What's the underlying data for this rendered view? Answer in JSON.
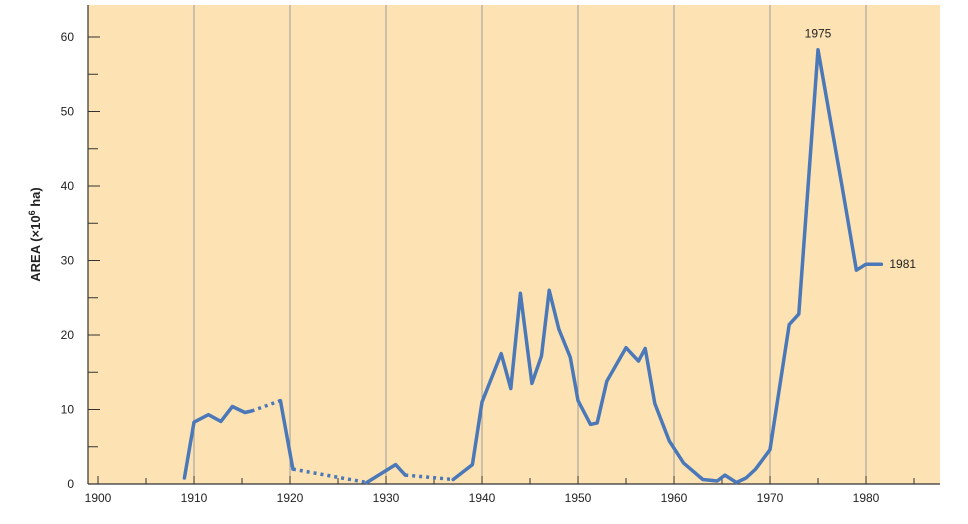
{
  "colors": {
    "plot_background": "#fde3b4",
    "line": "#4a78b8",
    "gridline": "#9a9a9a",
    "axis": "#333333"
  },
  "chart_data": {
    "type": "line",
    "title": "",
    "xlabel": "",
    "ylabel": "AREA (×10",
    "ylabel_sup": "6",
    "ylabel_unit": " ha)",
    "xlim": [
      1900,
      1990
    ],
    "ylim": [
      0,
      64
    ],
    "x_ticks": [
      1900,
      1910,
      1920,
      1930,
      1940,
      1950,
      1960,
      1970,
      1980
    ],
    "y_ticks": [
      0,
      10,
      20,
      30,
      40,
      50,
      60
    ],
    "grid": "vertical",
    "segments": [
      {
        "style": "solid",
        "points": [
          [
            1909,
            0.8
          ],
          [
            1910,
            8.3
          ],
          [
            1911.5,
            9.3
          ],
          [
            1912.8,
            8.4
          ],
          [
            1914,
            10.4
          ],
          [
            1915.3,
            9.6
          ],
          [
            1916,
            9.8
          ]
        ]
      },
      {
        "style": "dotted",
        "points": [
          [
            1916,
            9.8
          ],
          [
            1919,
            11.2
          ]
        ]
      },
      {
        "style": "solid",
        "points": [
          [
            1919,
            11.2
          ],
          [
            1920.3,
            2
          ]
        ]
      },
      {
        "style": "dotted",
        "points": [
          [
            1920.3,
            2
          ],
          [
            1928,
            0.2
          ]
        ]
      },
      {
        "style": "solid",
        "points": [
          [
            1928,
            0.2
          ],
          [
            1931,
            2.6
          ],
          [
            1932,
            1.2
          ]
        ]
      },
      {
        "style": "dotted",
        "points": [
          [
            1932,
            1.2
          ],
          [
            1937,
            0.6
          ]
        ]
      },
      {
        "style": "solid",
        "points": [
          [
            1937,
            0.6
          ],
          [
            1939,
            2.6
          ],
          [
            1940,
            11
          ],
          [
            1942,
            17.5
          ],
          [
            1943,
            12.8
          ],
          [
            1944,
            25.6
          ],
          [
            1945.2,
            13.5
          ],
          [
            1946.2,
            17.2
          ],
          [
            1947,
            26
          ],
          [
            1948,
            20.8
          ],
          [
            1949.2,
            17
          ],
          [
            1950,
            11.2
          ],
          [
            1951.3,
            8
          ],
          [
            1952,
            8.2
          ],
          [
            1953,
            13.8
          ],
          [
            1955,
            18.3
          ],
          [
            1956.3,
            16.5
          ],
          [
            1957,
            18.2
          ],
          [
            1958,
            10.8
          ],
          [
            1959.5,
            5.8
          ],
          [
            1961,
            2.8
          ],
          [
            1963,
            0.6
          ],
          [
            1964.5,
            0.4
          ],
          [
            1965.3,
            1.2
          ],
          [
            1966.5,
            0.2
          ],
          [
            1967.5,
            0.8
          ],
          [
            1968.5,
            2
          ],
          [
            1970,
            4.6
          ],
          [
            1972,
            21.4
          ],
          [
            1973,
            22.8
          ],
          [
            1975,
            58.3
          ],
          [
            1977.5,
            40
          ],
          [
            1979,
            28.7
          ],
          [
            1980,
            29.5
          ],
          [
            1981.6,
            29.5
          ]
        ]
      }
    ],
    "annotations": [
      {
        "text": "1975",
        "x": 1975,
        "y": 58.3
      },
      {
        "text": "1981",
        "x": 1981.6,
        "y": 29.5
      }
    ]
  }
}
